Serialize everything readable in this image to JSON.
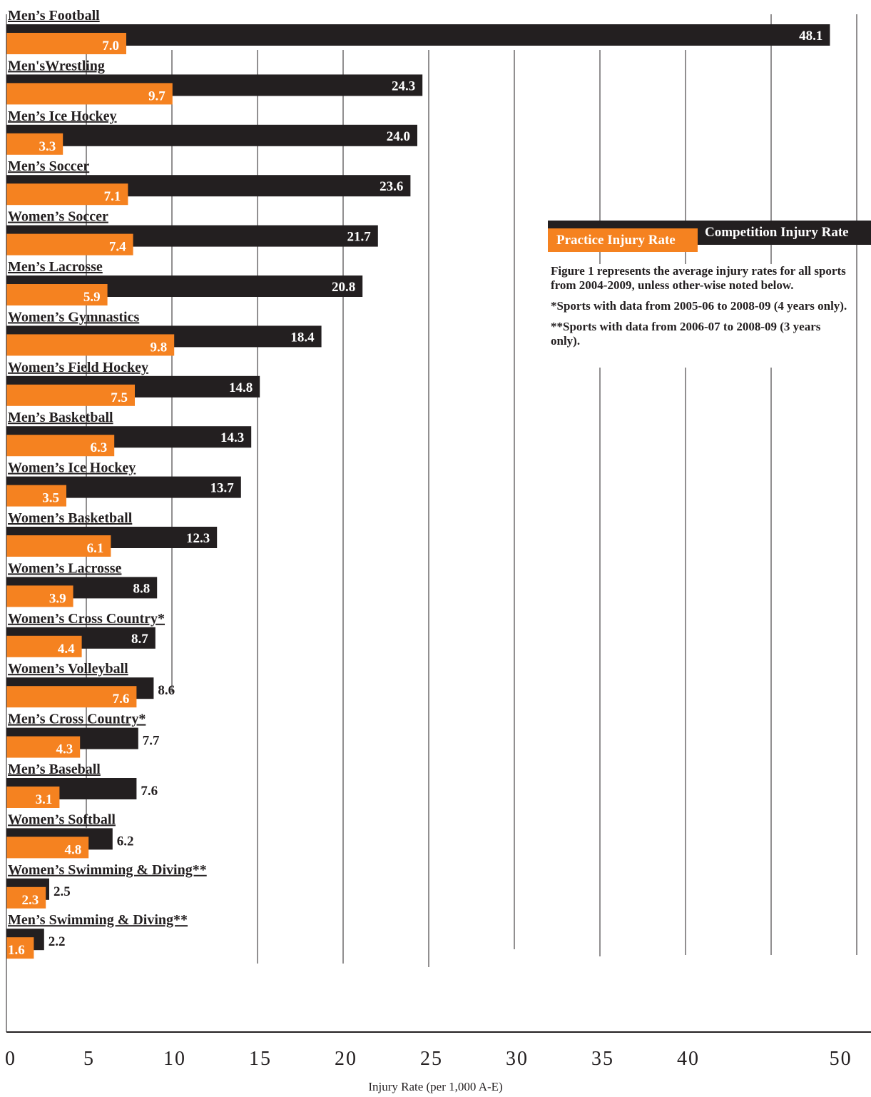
{
  "chart_data": {
    "type": "bar",
    "orientation": "horizontal",
    "categories": [
      "Men’s Football",
      "Men'sWrestling",
      "Men’s Ice Hockey",
      "Men’s Soccer",
      "Women’s Soccer",
      "Men’s Lacrosse",
      "Women’s Gymnastics",
      "Women’s Field Hockey",
      "Men’s Basketball",
      "Women’s Ice Hockey",
      "Women’s Basketball",
      "Women’s Lacrosse",
      "Women’s Cross Country*",
      "Women’s Volleyball",
      "Men’s Cross Country*",
      "Men’s Baseball",
      "Women’s Softball",
      "Women’s Swimming & Diving**",
      "Men’s Swimming & Diving**"
    ],
    "series": [
      {
        "name": "Competition Injury Rate",
        "color": "#231f20",
        "values": [
          48.1,
          24.3,
          24.0,
          23.6,
          21.7,
          20.8,
          18.4,
          14.8,
          14.3,
          13.7,
          12.3,
          8.8,
          8.7,
          8.6,
          7.7,
          7.6,
          6.2,
          2.5,
          2.2
        ],
        "labels": [
          "48.1",
          "24.3",
          "24.0",
          "23.6",
          "21.7",
          "20.8",
          "18.4",
          "14.8",
          "14.3",
          "13.7",
          "12.3",
          "8.8",
          "8.7",
          "8.6",
          "7.7",
          "7.6",
          "6.2",
          "2.5",
          "2.2"
        ]
      },
      {
        "name": "Practice Injury Rate",
        "color": "#f58220",
        "values": [
          7.0,
          9.7,
          3.3,
          7.1,
          7.4,
          5.9,
          9.8,
          7.5,
          6.3,
          3.5,
          6.1,
          3.9,
          4.4,
          7.6,
          4.3,
          3.1,
          4.8,
          2.3,
          1.6
        ],
        "labels": [
          "7.0",
          "9.7",
          "3.3",
          "7.1",
          "7.4",
          "5.9",
          "9.8",
          "7.5",
          "6.3",
          "3.5",
          "6.1",
          "3.9",
          "4.4",
          "7.6",
          "4.3",
          "3.1",
          "4.8",
          "2.3",
          "1.6"
        ]
      }
    ],
    "xlabel": "Injury Rate (per 1,000 A-E)",
    "xlim": [
      0,
      50
    ],
    "xticks": [
      "0",
      "5",
      "10",
      "15",
      "20",
      "25",
      "30",
      "35",
      "40",
      "50"
    ],
    "legend_placement": "right",
    "grid": true
  },
  "legend": {
    "competition": "Competition Injury Rate",
    "practice": "Practice Injury Rate"
  },
  "notes": [
    "Figure 1 represents the average injury rates for all sports from 2004-2009, unless other-wise noted below.",
    "*Sports with data from 2005-06 to 2008-09 (4 years only).",
    "**Sports with data from 2006-07 to 2008-09 (3 years only)."
  ]
}
